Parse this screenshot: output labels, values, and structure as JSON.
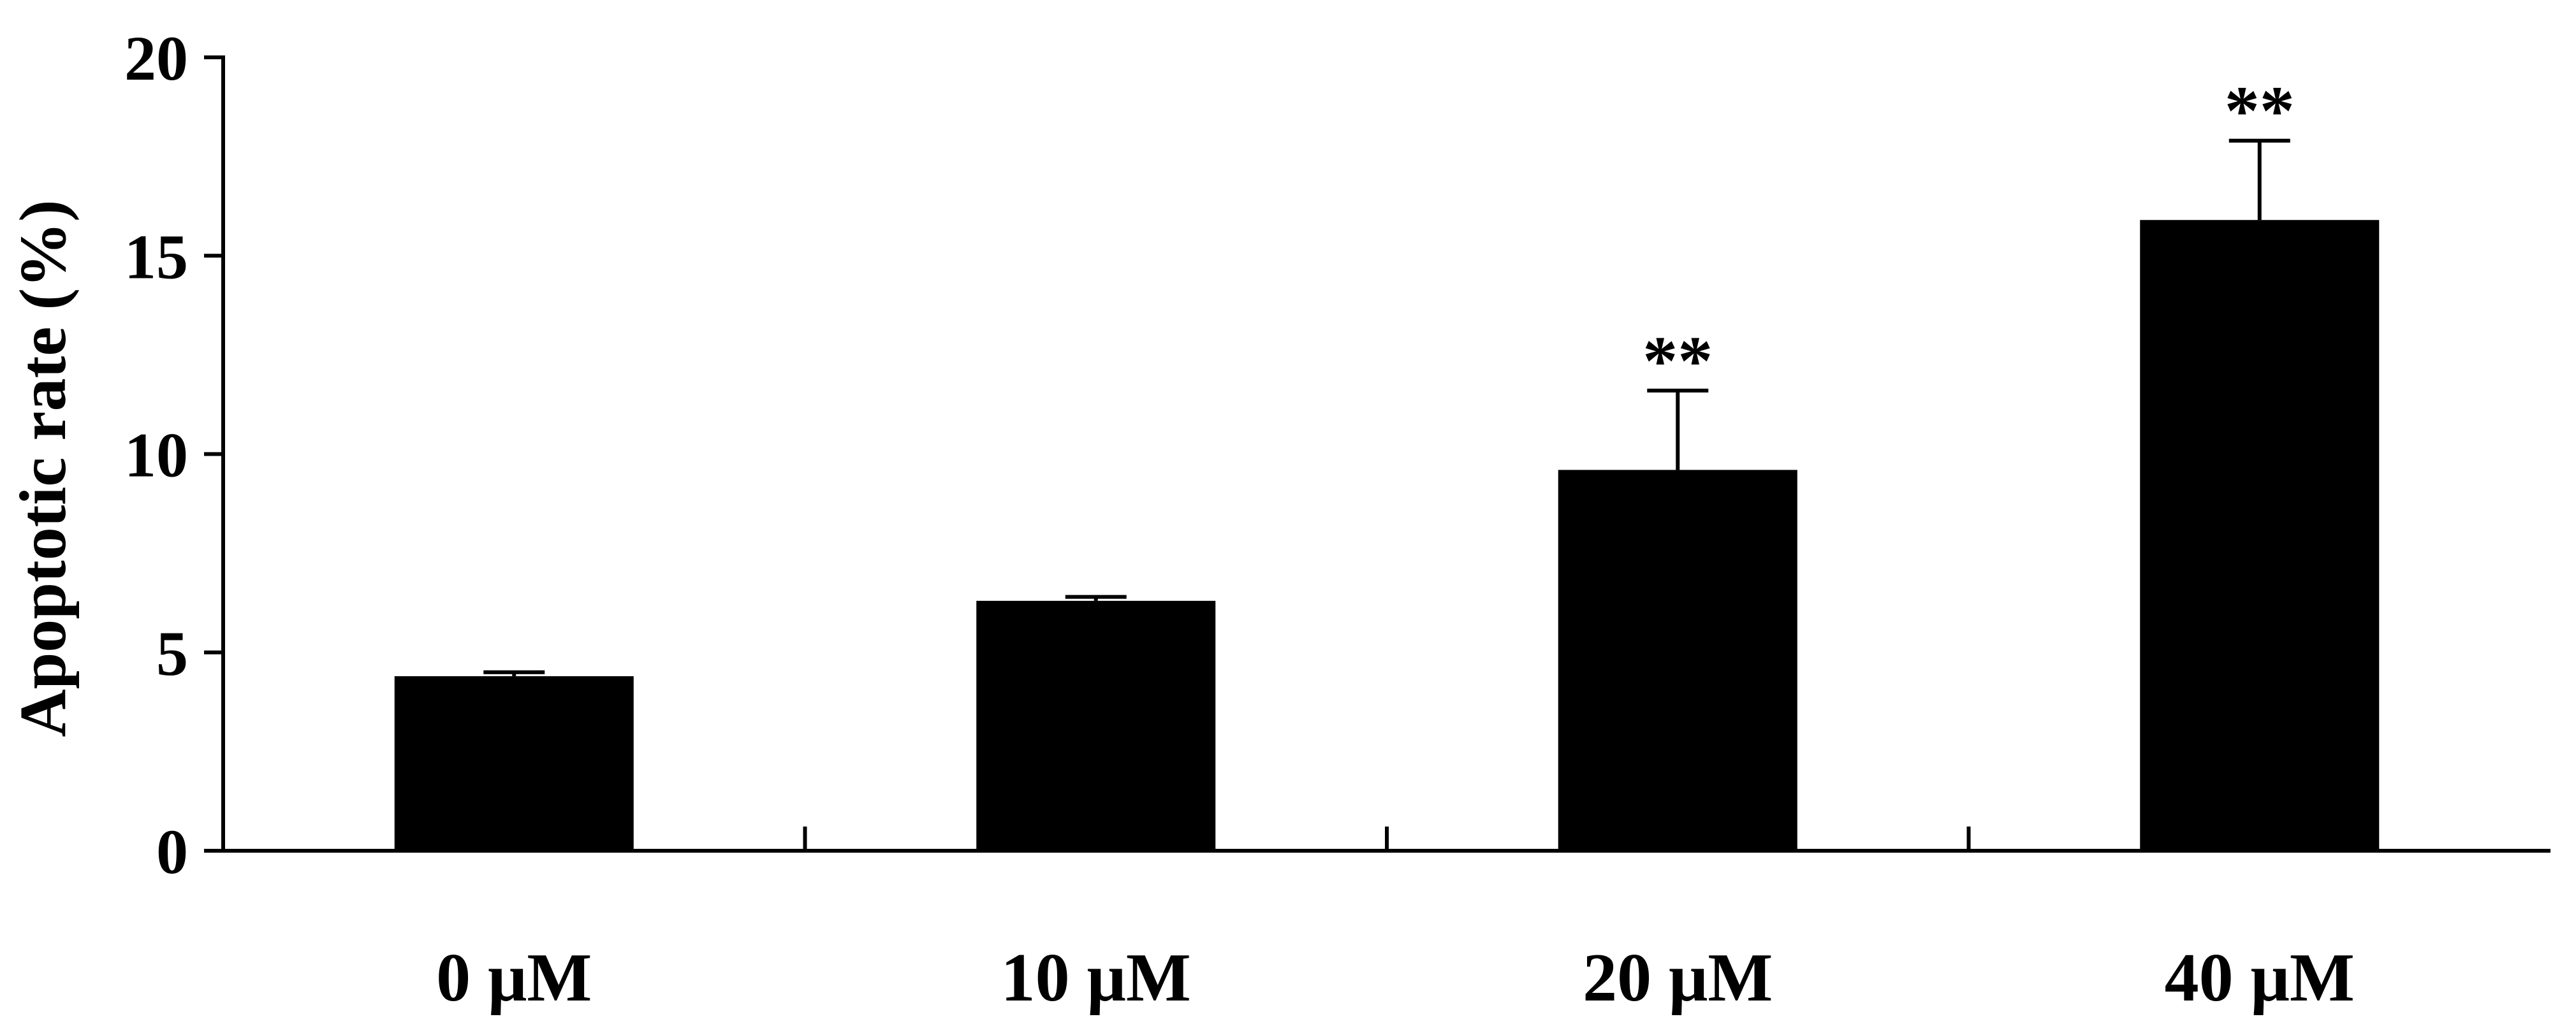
{
  "chart_data": {
    "type": "bar",
    "title": "",
    "xlabel": "",
    "ylabel": "Apoptotic rate (%)",
    "ylim": [
      0,
      20
    ],
    "yticks": [
      0,
      5,
      10,
      15,
      20
    ],
    "categories": [
      "0 μM",
      "10 μM",
      "20 μM",
      "40 μM"
    ],
    "values": [
      4.4,
      6.3,
      9.6,
      15.9
    ],
    "errors": [
      0.1,
      0.1,
      2.0,
      2.0
    ],
    "annotations": [
      "",
      "",
      "**",
      "**"
    ],
    "grid": false,
    "legend": "none",
    "bar_color": "#000000"
  }
}
